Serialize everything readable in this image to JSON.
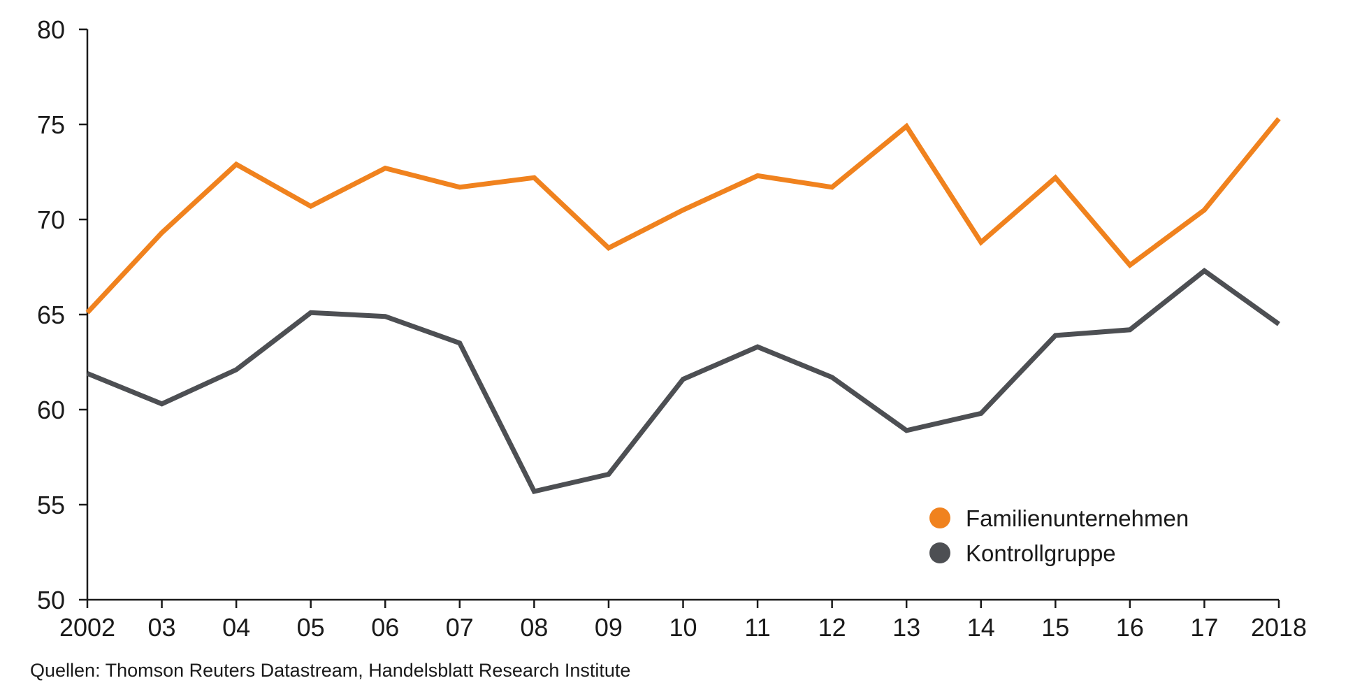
{
  "chart_data": {
    "type": "line",
    "x": [
      "2002",
      "03",
      "04",
      "05",
      "06",
      "07",
      "08",
      "09",
      "10",
      "11",
      "12",
      "13",
      "14",
      "15",
      "16",
      "17",
      "2018"
    ],
    "series": [
      {
        "name": "Familienunternehmen",
        "color": "#f0821e",
        "values": [
          65.1,
          69.3,
          72.9,
          70.7,
          72.7,
          71.7,
          72.2,
          68.5,
          70.5,
          72.3,
          71.7,
          74.9,
          68.8,
          72.2,
          67.6,
          70.5,
          75.3
        ]
      },
      {
        "name": "Kontrollgruppe",
        "color": "#4d4f53",
        "values": [
          61.9,
          60.3,
          62.1,
          65.1,
          64.9,
          63.5,
          55.7,
          56.6,
          61.6,
          63.3,
          61.7,
          58.9,
          59.8,
          63.9,
          64.2,
          67.3,
          64.5
        ]
      }
    ],
    "ylim": [
      50,
      80
    ],
    "yticks": [
      "50",
      "55",
      "60",
      "65",
      "70",
      "75",
      "80"
    ],
    "grid": false,
    "legend_position": "bottom-right",
    "title": "",
    "xlabel": "",
    "ylabel": ""
  },
  "source": "Quellen: Thomson Reuters Datastream, Handelsblatt Research Institute"
}
